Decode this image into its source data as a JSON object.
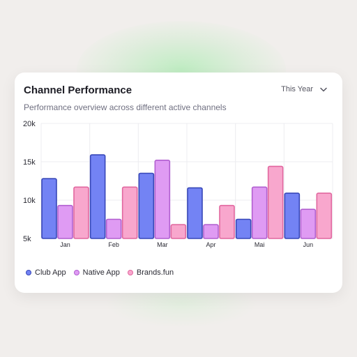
{
  "card": {
    "title": "Channel Performance",
    "subtitle": "Performance overview across different active channels",
    "period_label": "This Year"
  },
  "chart_data": {
    "type": "bar",
    "categories": [
      "Jan",
      "Feb",
      "Mar",
      "Apr",
      "Mai",
      "Jun"
    ],
    "ylim": [
      5000,
      20000
    ],
    "yticks": [
      {
        "value": 20000,
        "label": "20k"
      },
      {
        "value": 15000,
        "label": "15k"
      },
      {
        "value": 10000,
        "label": "10k"
      },
      {
        "value": 5000,
        "label": "5k"
      }
    ],
    "grid": true,
    "legend_position": "bottom-left",
    "series": [
      {
        "name": "Club App",
        "color": "#7383f4",
        "stroke": "#3747b8",
        "values": [
          12800,
          15900,
          13500,
          11600,
          7500,
          10900
        ]
      },
      {
        "name": "Native App",
        "color": "#df9bf3",
        "stroke": "#b15fd0",
        "values": [
          9300,
          7500,
          15200,
          6800,
          11700,
          8800
        ]
      },
      {
        "name": "Brands.fun",
        "color": "#f8a7cd",
        "stroke": "#e1679f",
        "values": [
          11700,
          11700,
          6800,
          9300,
          14400,
          10900
        ]
      }
    ]
  }
}
